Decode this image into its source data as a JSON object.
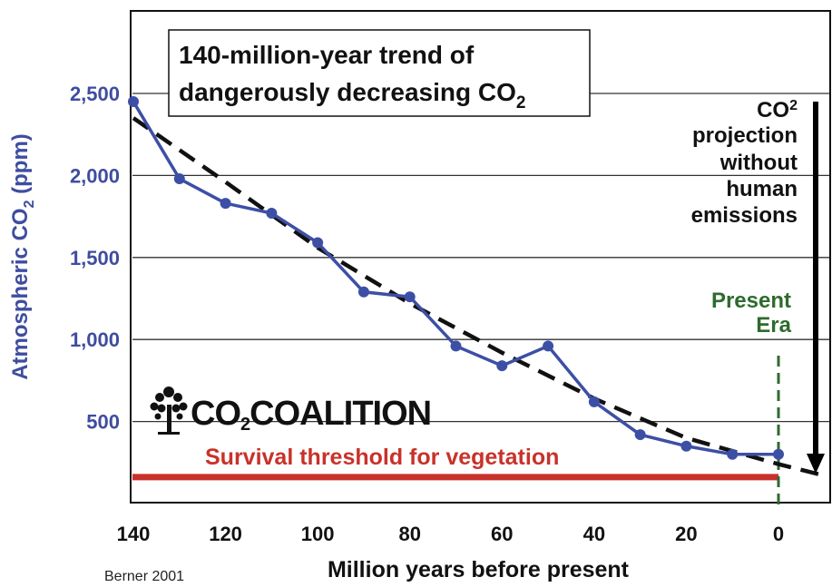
{
  "chart_data": {
    "type": "line",
    "title_line1": "140-million-year trend of",
    "title_line2": "dangerously decreasing CO",
    "title_sub": "2",
    "ylabel_pre": "Atmospheric CO",
    "ylabel_sub": "2",
    "ylabel_post": " (ppm)",
    "xlabel": "Million years before present",
    "x_ticks": [
      "140",
      "120",
      "100",
      "80",
      "60",
      "40",
      "20",
      "0"
    ],
    "y_ticks": [
      "500",
      "1,000",
      "1,500",
      "2,000",
      "2,500"
    ],
    "xlim": [
      140,
      0
    ],
    "ylim": [
      0,
      2500
    ],
    "x_axis_reversed": true,
    "grid": "horizontal",
    "series": [
      {
        "color": "#3d4fa5",
        "marker": "circle",
        "x": [
          140,
          130,
          120,
          110,
          100,
          90,
          80,
          70,
          60,
          50,
          40,
          30,
          20,
          10,
          0
        ],
        "y": [
          2450,
          1980,
          1830,
          1770,
          1590,
          1290,
          1260,
          960,
          840,
          960,
          620,
          420,
          350,
          300,
          300
        ]
      }
    ],
    "trend_line": {
      "style": "dashed",
      "color": "#111111",
      "x": [
        140,
        120,
        100,
        80,
        60,
        40,
        20,
        0,
        -10
      ],
      "y": [
        2350,
        1960,
        1560,
        1220,
        920,
        640,
        400,
        240,
        170
      ]
    },
    "threshold": {
      "label": "Survival threshold for vegetation",
      "value": 150,
      "color": "#c8322a"
    },
    "present_marker": {
      "label_line1": "Present",
      "label_line2": "Era",
      "x": 0,
      "color": "#2e6b2e"
    },
    "projection": {
      "line1_pre": "CO",
      "line1_sub": "2",
      "line2": "projection",
      "line3": "without",
      "line4": "human",
      "line5": "emissions",
      "arrow_color": "#000000"
    },
    "source": "Berner 2001"
  },
  "logo": {
    "text_pre": "CO",
    "text_sub": "2",
    "text_post": "COALITION",
    "icon": "tree-icon"
  },
  "colors": {
    "series": "#3d4fa5",
    "axis_text": "#3f4da0",
    "threshold": "#c8322a",
    "present": "#2e6b2e",
    "grid": "#333333"
  }
}
